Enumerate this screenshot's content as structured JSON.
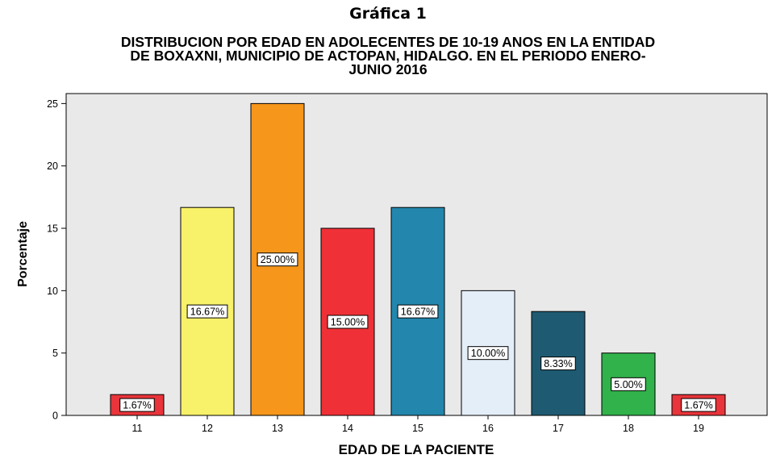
{
  "figure_label": "Gráfica 1",
  "chart_data": {
    "type": "bar",
    "title_lines": [
      "DISTRIBUCION POR EDAD EN ADOLECENTES DE 10-19 ANOS EN LA ENTIDAD",
      "DE BOXAXNI, MUNICIPIO DE ACTOPAN, HIDALGO. EN EL PERIODO ENERO-",
      "JUNIO 2016"
    ],
    "xlabel": "EDAD DE LA PACIENTE",
    "ylabel": "Porcentaje",
    "categories": [
      "11",
      "12",
      "13",
      "14",
      "15",
      "16",
      "17",
      "18",
      "19"
    ],
    "values": [
      1.67,
      16.67,
      25.0,
      15.0,
      16.67,
      10.0,
      8.33,
      5.0,
      1.67
    ],
    "data_labels": [
      "1.67%",
      "16.67%",
      "25.00%",
      "15.00%",
      "16.67%",
      "10.00%",
      "8.33%",
      "5.00%",
      "1.67%"
    ],
    "colors": [
      "#e8343a",
      "#f8f16a",
      "#f6961b",
      "#ef3137",
      "#2387ad",
      "#e4eef9",
      "#1e5b72",
      "#31b24a",
      "#e8343a"
    ],
    "ylim": [
      0,
      25.8
    ],
    "yticks": [
      0,
      5,
      10,
      15,
      20,
      25
    ],
    "plot_background": "#e9e9e9",
    "grid": false,
    "legend": "none"
  }
}
